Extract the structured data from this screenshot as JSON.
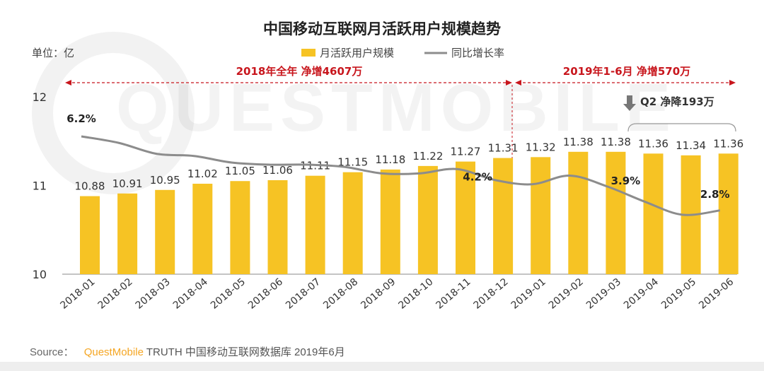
{
  "chart_data": {
    "type": "bar",
    "title": "中国移动互联网月活跃用户规模趋势",
    "unit_label": "单位：亿",
    "categories": [
      "2018-01",
      "2018-02",
      "2018-03",
      "2018-04",
      "2018-05",
      "2018-06",
      "2018-07",
      "2018-08",
      "2018-09",
      "2018-10",
      "2018-11",
      "2018-12",
      "2019-01",
      "2019-02",
      "2019-03",
      "2019-04",
      "2019-05",
      "2019-06"
    ],
    "series": [
      {
        "name": "月活跃用户规模",
        "type": "bar",
        "color": "#F6C324",
        "values": [
          10.88,
          10.91,
          10.95,
          11.02,
          11.05,
          11.06,
          11.11,
          11.15,
          11.18,
          11.22,
          11.27,
          11.31,
          11.32,
          11.38,
          11.38,
          11.36,
          11.34,
          11.36
        ]
      },
      {
        "name": "同比增长率",
        "type": "line",
        "color": "#8C8C8C",
        "unit": "%",
        "values": [
          6.2,
          5.9,
          5.4,
          5.3,
          5.0,
          4.9,
          4.9,
          4.8,
          4.5,
          4.5,
          4.7,
          4.2,
          4.0,
          4.4,
          3.9,
          3.2,
          2.6,
          2.8
        ],
        "labeled_points": [
          {
            "index": 0,
            "label": "6.2%"
          },
          {
            "index": 11,
            "label": "4.2%"
          },
          {
            "index": 14,
            "label": "3.9%"
          },
          {
            "index": 17,
            "label": "2.8%"
          }
        ]
      }
    ],
    "yticks": [
      "10",
      "11",
      "12"
    ],
    "ylim": [
      10,
      12
    ],
    "legend_position": "top-center",
    "annotations": {
      "period_2018": "2018年全年  净增4607万",
      "period_2019": "2019年1-6月  净增570万",
      "q2": "Q2  净降193万"
    },
    "colors": {
      "accent_red": "#C8161D",
      "bar": "#F6C324",
      "line": "#8C8C8C"
    }
  },
  "source": {
    "prefix": "Source：",
    "brand": "QuestMobile",
    "rest": " TRUTH 中国移动互联网数据库 2019年6月",
    "brand_color": "#F5A623"
  },
  "watermark": {
    "text": "QUESTMOBILE"
  }
}
